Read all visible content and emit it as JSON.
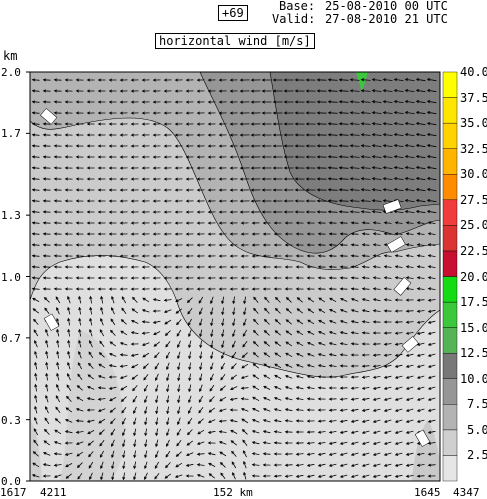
{
  "header": {
    "step_label": "+69",
    "base_label": "Base:",
    "base_value": "25-08-2010  00 UTC",
    "valid_label": "Valid:",
    "valid_value": "27-08-2010  21 UTC"
  },
  "chart_data": {
    "type": "heatmap",
    "title": "horizontal wind [m/s]",
    "ylabel": "km",
    "ylim": [
      0.0,
      2.0
    ],
    "y_ticks": [
      "0.0",
      "0.3",
      "0.7",
      "1.0",
      "1.3",
      "1.7",
      "2.0"
    ],
    "x_labels": {
      "left_outer": "1617",
      "left_inner": "4211",
      "center": "152 km",
      "right_inner": "1645",
      "right_outer": "4347"
    },
    "colorbar": {
      "levels": [
        "2.5",
        "5.0",
        "7.5",
        "10.0",
        "12.5",
        "15.0",
        "17.5",
        "20.0",
        "22.5",
        "25.0",
        "27.5",
        "30.0",
        "32.5",
        "35.0",
        "37.5",
        "40.0"
      ],
      "colors": [
        "#e6e6e6",
        "#cfcfcf",
        "#b3b3b3",
        "#969696",
        "#787878",
        "#55b455",
        "#3cc83c",
        "#14dc14",
        "#c80f32",
        "#dc3232",
        "#f03c3c",
        "#ff8c00",
        "#ffb400",
        "#ffd200",
        "#ffe600",
        "#ffff00"
      ]
    },
    "wind_regions": [
      {
        "name": "below 5.0 m/s",
        "range": [
          0,
          5.0
        ]
      },
      {
        "name": "5.0-7.5 m/s",
        "range": [
          5.0,
          7.5
        ]
      },
      {
        "name": "7.5-10.0 m/s",
        "range": [
          7.5,
          10.0
        ]
      },
      {
        "name": "10.0-12.5 m/s",
        "range": [
          10.0,
          12.5
        ]
      },
      {
        "name": "12.5-15.0 m/s",
        "range": [
          12.5,
          15.0
        ]
      }
    ],
    "contour_labels": [
      "10",
      "10",
      "10",
      "10",
      "5",
      "5",
      "10"
    ]
  }
}
